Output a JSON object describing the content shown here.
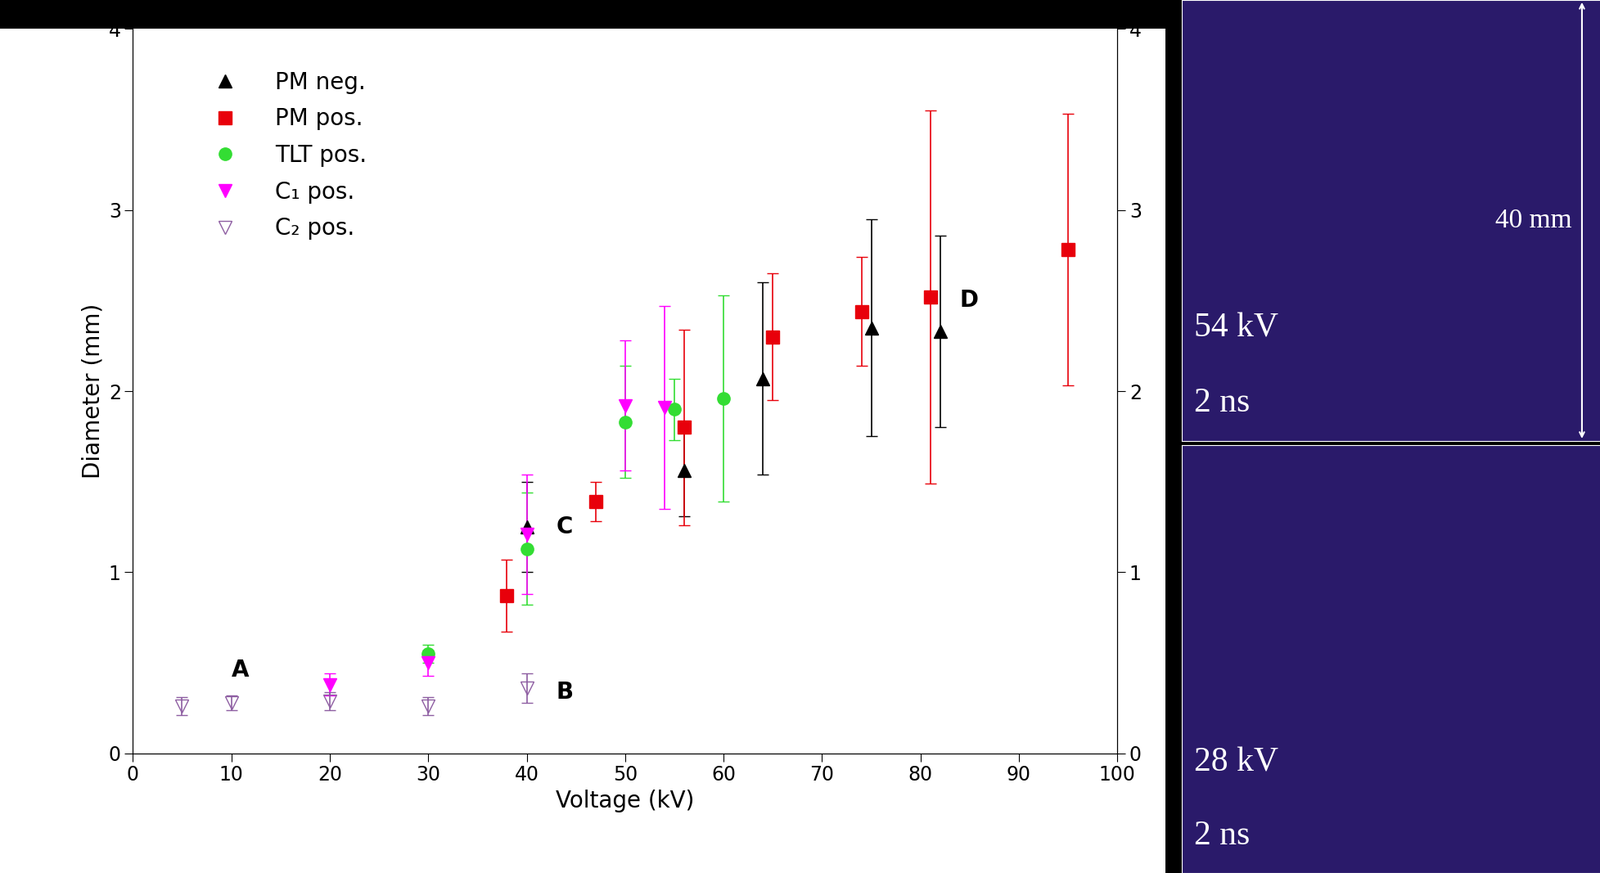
{
  "chart_data": {
    "type": "scatter",
    "x_label": "Voltage (kV)",
    "y_label": "Diameter (mm)",
    "xlim": [
      0,
      100
    ],
    "xticks": [
      0,
      10,
      20,
      30,
      40,
      50,
      60,
      70,
      80,
      90,
      100
    ],
    "ylim": [
      0,
      4
    ],
    "yticks": [
      0,
      1,
      2,
      3,
      4
    ],
    "y2lim": [
      0,
      4
    ],
    "y2ticks": [
      0,
      1,
      2,
      3,
      4
    ],
    "legend": "upper left",
    "grid": false,
    "series": [
      {
        "name": "PM neg.",
        "color": "#000000",
        "marker": "triangle_up",
        "x": [
          40,
          56,
          64,
          75,
          82
        ],
        "values": [
          1.25,
          1.56,
          2.07,
          2.35,
          2.33
        ],
        "errors": [
          0.25,
          0.25,
          0.53,
          0.6,
          0.53
        ]
      },
      {
        "name": "PM pos.",
        "color": "#e8000b",
        "marker": "square",
        "x": [
          38,
          47,
          56,
          65,
          74,
          81,
          95
        ],
        "values": [
          0.87,
          1.39,
          1.8,
          2.3,
          2.44,
          2.52,
          2.78
        ],
        "errors": [
          0.2,
          0.11,
          0.54,
          0.35,
          0.3,
          1.03,
          0.75
        ]
      },
      {
        "name": "TLT pos.",
        "color": "#33dd33",
        "marker": "circle",
        "x": [
          30,
          40,
          50,
          55,
          60
        ],
        "values": [
          0.55,
          1.13,
          1.83,
          1.9,
          1.96
        ],
        "errors": [
          0.05,
          0.31,
          0.31,
          0.17,
          0.57
        ]
      },
      {
        "name": "C₁ pos.",
        "color": "#ff00ff",
        "marker": "triangle_down",
        "x": [
          20,
          30,
          40,
          50,
          54
        ],
        "values": [
          0.38,
          0.5,
          1.21,
          1.92,
          1.91
        ],
        "errors": [
          0.06,
          0.07,
          0.33,
          0.36,
          0.56
        ]
      },
      {
        "name": "C₂ pos.",
        "color": "#8e5ea2",
        "marker": "triangle_down_open",
        "x": [
          5,
          10,
          20,
          30,
          40
        ],
        "values": [
          0.26,
          0.28,
          0.29,
          0.26,
          0.36
        ],
        "errors": [
          0.05,
          0.04,
          0.05,
          0.05,
          0.08
        ]
      }
    ],
    "annotations": [
      {
        "text": "A",
        "x": 10,
        "y": 0.46
      },
      {
        "text": "B",
        "x": 43,
        "y": 0.34
      },
      {
        "text": "C",
        "x": 43,
        "y": 1.25
      },
      {
        "text": "D",
        "x": 84,
        "y": 2.5
      }
    ],
    "panels": [
      {
        "voltage": "54 kV",
        "time": "2 ns",
        "scale": "40 mm"
      },
      {
        "voltage": "28 kV",
        "time": "2 ns"
      }
    ]
  }
}
